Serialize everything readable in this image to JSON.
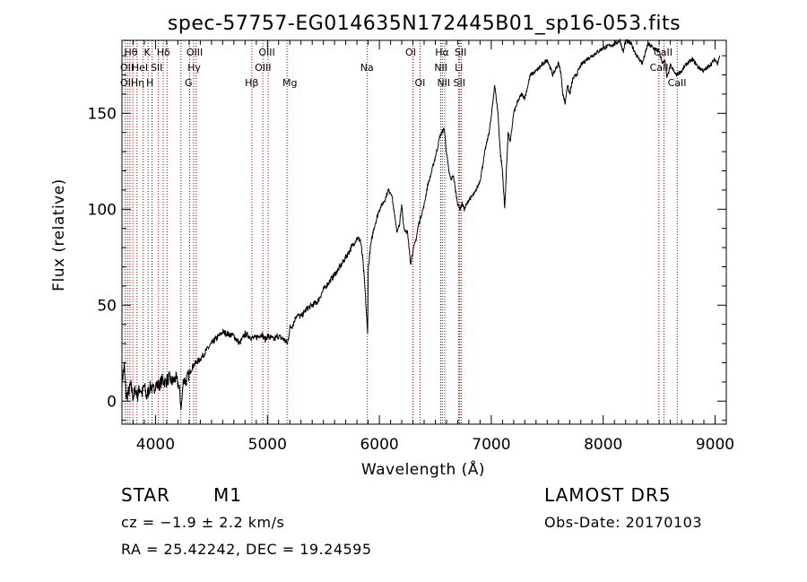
{
  "chart_data": {
    "type": "line",
    "title": "spec-57757-EG014635N172445B01_sp16-053.fits",
    "xlabel": "Wavelength (Å)",
    "ylabel": "Flux (relative)",
    "xlim": [
      3700,
      9100
    ],
    "ylim": [
      -12,
      188
    ],
    "xticks": [
      4000,
      5000,
      6000,
      7000,
      8000,
      9000
    ],
    "yticks": [
      0,
      50,
      100,
      150
    ],
    "grid": false,
    "series": [
      {
        "x": [
          3700,
          3720,
          3740,
          3760,
          3780,
          3800,
          3820,
          3840,
          3860,
          3880,
          3900,
          3920,
          3940,
          3960,
          3980,
          4000,
          4030,
          4060,
          4090,
          4120,
          4150,
          4180,
          4210,
          4230,
          4250,
          4270,
          4300,
          4330,
          4360,
          4400,
          4450,
          4500,
          4550,
          4600,
          4650,
          4700,
          4750,
          4780,
          4800,
          4830,
          4860,
          4890,
          4920,
          4950,
          4980,
          5000,
          5030,
          5060,
          5090,
          5120,
          5150,
          5180,
          5200,
          5230,
          5260,
          5300,
          5350,
          5400,
          5450,
          5500,
          5550,
          5600,
          5650,
          5700,
          5750,
          5800,
          5830,
          5850,
          5870,
          5890,
          5895,
          5900,
          5920,
          5950,
          6000,
          6050,
          6080,
          6110,
          6140,
          6160,
          6180,
          6200,
          6220,
          6250,
          6280,
          6300,
          6330,
          6350,
          6370,
          6400,
          6430,
          6460,
          6490,
          6520,
          6540,
          6560,
          6580,
          6600,
          6620,
          6640,
          6660,
          6680,
          6700,
          6720,
          6740,
          6760,
          6800,
          6850,
          6900,
          6950,
          6980,
          7000,
          7030,
          7060,
          7080,
          7100,
          7120,
          7150,
          7170,
          7200,
          7230,
          7270,
          7300,
          7350,
          7400,
          7450,
          7500,
          7550,
          7600,
          7620,
          7640,
          7660,
          7680,
          7700,
          7730,
          7760,
          7800,
          7850,
          7900,
          7950,
          8000,
          8050,
          8100,
          8150,
          8180,
          8200,
          8250,
          8300,
          8350,
          8400,
          8450,
          8500,
          8530,
          8550,
          8570,
          8600,
          8650,
          8700,
          8750,
          8800,
          8850,
          8900,
          8950,
          9000,
          9020,
          9040
        ],
        "y": [
          10,
          18,
          2,
          5,
          8,
          2,
          6,
          3,
          7,
          4,
          8,
          2,
          6,
          8,
          5,
          9,
          8,
          11,
          10,
          12,
          10,
          12,
          8,
          -4,
          12,
          10,
          14,
          18,
          20,
          22,
          26,
          30,
          33,
          36,
          35,
          34,
          30,
          33,
          35,
          34,
          33,
          33,
          34,
          35,
          32,
          34,
          33,
          32,
          34,
          33,
          32,
          30,
          38,
          40,
          45,
          44,
          48,
          50,
          52,
          58,
          62,
          66,
          70,
          75,
          80,
          85,
          84,
          75,
          60,
          40,
          35,
          68,
          80,
          90,
          100,
          105,
          110,
          108,
          95,
          88,
          92,
          102,
          90,
          88,
          72,
          78,
          85,
          92,
          96,
          102,
          112,
          118,
          125,
          132,
          138,
          140,
          142,
          130,
          120,
          115,
          118,
          110,
          103,
          100,
          103,
          100,
          105,
          108,
          115,
          132,
          140,
          148,
          165,
          150,
          130,
          120,
          100,
          140,
          135,
          150,
          155,
          160,
          158,
          170,
          172,
          175,
          178,
          170,
          176,
          172,
          160,
          155,
          165,
          160,
          168,
          170,
          175,
          178,
          180,
          182,
          184,
          185,
          186,
          188,
          182,
          188,
          186,
          180,
          176,
          186,
          184,
          182,
          176,
          178,
          168,
          175,
          170,
          172,
          176,
          178,
          174,
          172,
          175,
          178,
          176,
          180
        ]
      }
    ],
    "lines": [
      {
        "lines_x": [
          3727,
          3750,
          3771,
          3798,
          3835,
          3889,
          3934,
          3969,
          4026,
          4069,
          4102,
          4227,
          4305,
          4340,
          4363,
          4861,
          4959,
          5007,
          5175,
          5893,
          6300,
          6363,
          6548,
          6563,
          6584,
          6708,
          6716,
          6731,
          8498,
          8542,
          8662
        ]
      }
    ],
    "line_labels": [
      {
        "text": "Hθ",
        "x": 3780,
        "row": 1
      },
      {
        "text": "K",
        "x": 3925,
        "row": 1
      },
      {
        "text": "Hδ",
        "x": 4070,
        "row": 1
      },
      {
        "text": "OIII",
        "x": 4350,
        "row": 1
      },
      {
        "text": "OIII",
        "x": 4995,
        "row": 1
      },
      {
        "text": "OI",
        "x": 6280,
        "row": 1
      },
      {
        "text": "Hα",
        "x": 6560,
        "row": 1
      },
      {
        "text": "SII",
        "x": 6725,
        "row": 1
      },
      {
        "text": "CaII",
        "x": 8535,
        "row": 1
      },
      {
        "text": "OII",
        "x": 3745,
        "row": 2
      },
      {
        "text": "HeI",
        "x": 3860,
        "row": 2
      },
      {
        "text": "SII",
        "x": 4010,
        "row": 2
      },
      {
        "text": "Hγ",
        "x": 4345,
        "row": 2
      },
      {
        "text": "OIII",
        "x": 4960,
        "row": 2
      },
      {
        "text": "Na",
        "x": 5890,
        "row": 2
      },
      {
        "text": "NII",
        "x": 6550,
        "row": 2
      },
      {
        "text": "Li",
        "x": 6710,
        "row": 2
      },
      {
        "text": "CaII",
        "x": 8500,
        "row": 2
      },
      {
        "text": "OII",
        "x": 3745,
        "row": 3
      },
      {
        "text": "Hη",
        "x": 3840,
        "row": 3
      },
      {
        "text": "H",
        "x": 3950,
        "row": 3
      },
      {
        "text": "G",
        "x": 4295,
        "row": 3
      },
      {
        "text": "Hβ",
        "x": 4860,
        "row": 3
      },
      {
        "text": "Mg",
        "x": 5200,
        "row": 3
      },
      {
        "text": "OI",
        "x": 6363,
        "row": 3
      },
      {
        "text": "NII",
        "x": 6575,
        "row": 3
      },
      {
        "text": "SII",
        "x": 6715,
        "row": 3
      },
      {
        "text": "CaII",
        "x": 8660,
        "row": 3
      }
    ],
    "colors": {
      "spectrum": "#000000",
      "lines": "#8b0000",
      "background": "#ffffff"
    }
  },
  "info": {
    "object_class": "STAR",
    "subclass": "M1",
    "survey": "LAMOST DR5",
    "cz": "cz = −1.9 ± 2.2 km/s",
    "obs_date": "Obs-Date: 20170103",
    "coords": "RA =  25.42242, DEC =  19.24595"
  }
}
